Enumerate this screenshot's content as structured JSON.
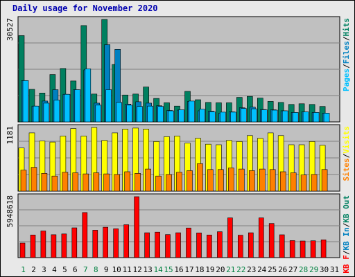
{
  "title": "Daily usage for November 2020",
  "days": [
    "1",
    "2",
    "3",
    "4",
    "5",
    "6",
    "7",
    "8",
    "9",
    "10",
    "11",
    "12",
    "13",
    "14",
    "15",
    "16",
    "17",
    "18",
    "19",
    "20",
    "21",
    "22",
    "23",
    "24",
    "25",
    "26",
    "27",
    "28",
    "29",
    "30",
    "31"
  ],
  "weekend_days": [
    "1",
    "7",
    "8",
    "14",
    "15",
    "21",
    "22",
    "28",
    "29"
  ],
  "colors": {
    "hits": "#008060",
    "files": "#0080c0",
    "pages": "#00c0ff",
    "visits": "#ffff00",
    "sites": "#ff8000",
    "kb_in": "#0080c0",
    "kb_out": "#008060",
    "kb_f": "#ff0000",
    "title": "#0000b0",
    "weekend": "#008040",
    "weekday": "#000000"
  },
  "chart_data": [
    {
      "type": "bar",
      "panel": "hits-files-pages",
      "ymax_label": "30527",
      "ylim": [
        0,
        30527
      ],
      "legend": [
        "Pages",
        "Files",
        "Hits"
      ],
      "categories": [
        "1",
        "2",
        "3",
        "4",
        "5",
        "6",
        "7",
        "8",
        "9",
        "10",
        "11",
        "12",
        "13",
        "14",
        "15",
        "16",
        "17",
        "18",
        "19",
        "20",
        "21",
        "22",
        "23",
        "24",
        "25",
        "26",
        "27",
        "28",
        "29",
        "30",
        "31"
      ],
      "series": [
        {
          "name": "Hits",
          "color": "#008060",
          "values": [
            25700,
            9700,
            8600,
            14100,
            15900,
            12200,
            28700,
            8300,
            30500,
            17100,
            8000,
            8300,
            10400,
            7000,
            5700,
            4700,
            9100,
            6600,
            5800,
            5700,
            5700,
            7300,
            7600,
            7100,
            6100,
            5800,
            5200,
            5400,
            5200,
            4600,
            null
          ]
        },
        {
          "name": "Files",
          "color": "#0080c0",
          "values": [
            12300,
            4700,
            6200,
            9600,
            8200,
            9600,
            15500,
            5600,
            23000,
            21600,
            5300,
            6000,
            5600,
            4800,
            3400,
            3500,
            6100,
            3300,
            3200,
            2600,
            3000,
            4200,
            4400,
            3700,
            3600,
            3300,
            2800,
            3000,
            2800,
            2600,
            null
          ]
        },
        {
          "name": "Pages",
          "color": "#00c0ff",
          "values": [
            12300,
            4700,
            5600,
            6500,
            8200,
            9600,
            15800,
            5000,
            9600,
            5800,
            5000,
            4600,
            4700,
            4600,
            3300,
            3600,
            6200,
            3800,
            3000,
            2900,
            2900,
            4000,
            3900,
            3600,
            3500,
            3300,
            2800,
            3000,
            2800,
            2600,
            null
          ]
        }
      ]
    },
    {
      "type": "bar",
      "panel": "visits-sites",
      "ymax_label": "1181",
      "ylim": [
        0,
        1181
      ],
      "legend": [
        "Sites",
        "Visits"
      ],
      "categories": [
        "1",
        "2",
        "3",
        "4",
        "5",
        "6",
        "7",
        "8",
        "9",
        "10",
        "11",
        "12",
        "13",
        "14",
        "15",
        "16",
        "17",
        "18",
        "19",
        "20",
        "21",
        "22",
        "23",
        "24",
        "25",
        "26",
        "27",
        "28",
        "29",
        "30",
        "31"
      ],
      "series": [
        {
          "name": "Visits",
          "color": "#ffff00",
          "values": [
            800,
            1080,
            930,
            910,
            1020,
            1160,
            1020,
            1180,
            940,
            1080,
            1150,
            1170,
            1150,
            920,
            1010,
            1020,
            890,
            980,
            870,
            860,
            940,
            920,
            1030,
            980,
            1080,
            1030,
            860,
            860,
            920,
            850,
            null
          ]
        },
        {
          "name": "Sites",
          "color": "#ff8000",
          "values": [
            390,
            440,
            330,
            280,
            350,
            340,
            320,
            340,
            320,
            310,
            360,
            330,
            410,
            280,
            310,
            350,
            380,
            510,
            400,
            400,
            430,
            410,
            380,
            410,
            400,
            360,
            340,
            300,
            310,
            400,
            null
          ]
        }
      ]
    },
    {
      "type": "bar",
      "panel": "kb",
      "ymax_label": "5948618",
      "ylim": [
        0,
        5948618
      ],
      "legend": [
        "KB F",
        "KB In",
        "KB Out"
      ],
      "categories": [
        "1",
        "2",
        "3",
        "4",
        "5",
        "6",
        "7",
        "8",
        "9",
        "10",
        "11",
        "12",
        "13",
        "14",
        "15",
        "16",
        "17",
        "18",
        "19",
        "20",
        "21",
        "22",
        "23",
        "24",
        "25",
        "26",
        "27",
        "28",
        "29",
        "30",
        "31"
      ],
      "series": [
        {
          "name": "KB F",
          "color": "#ff0000",
          "values": [
            1420000,
            2210000,
            2600000,
            2240000,
            2310000,
            2910000,
            4400000,
            2680000,
            2970000,
            2820000,
            3210000,
            5950000,
            2430000,
            2490000,
            2250000,
            2430000,
            2890000,
            2410000,
            2210000,
            2530000,
            3880000,
            2190000,
            2430000,
            3880000,
            3330000,
            2230000,
            1660000,
            1620000,
            1640000,
            1740000,
            null
          ]
        }
      ]
    }
  ]
}
